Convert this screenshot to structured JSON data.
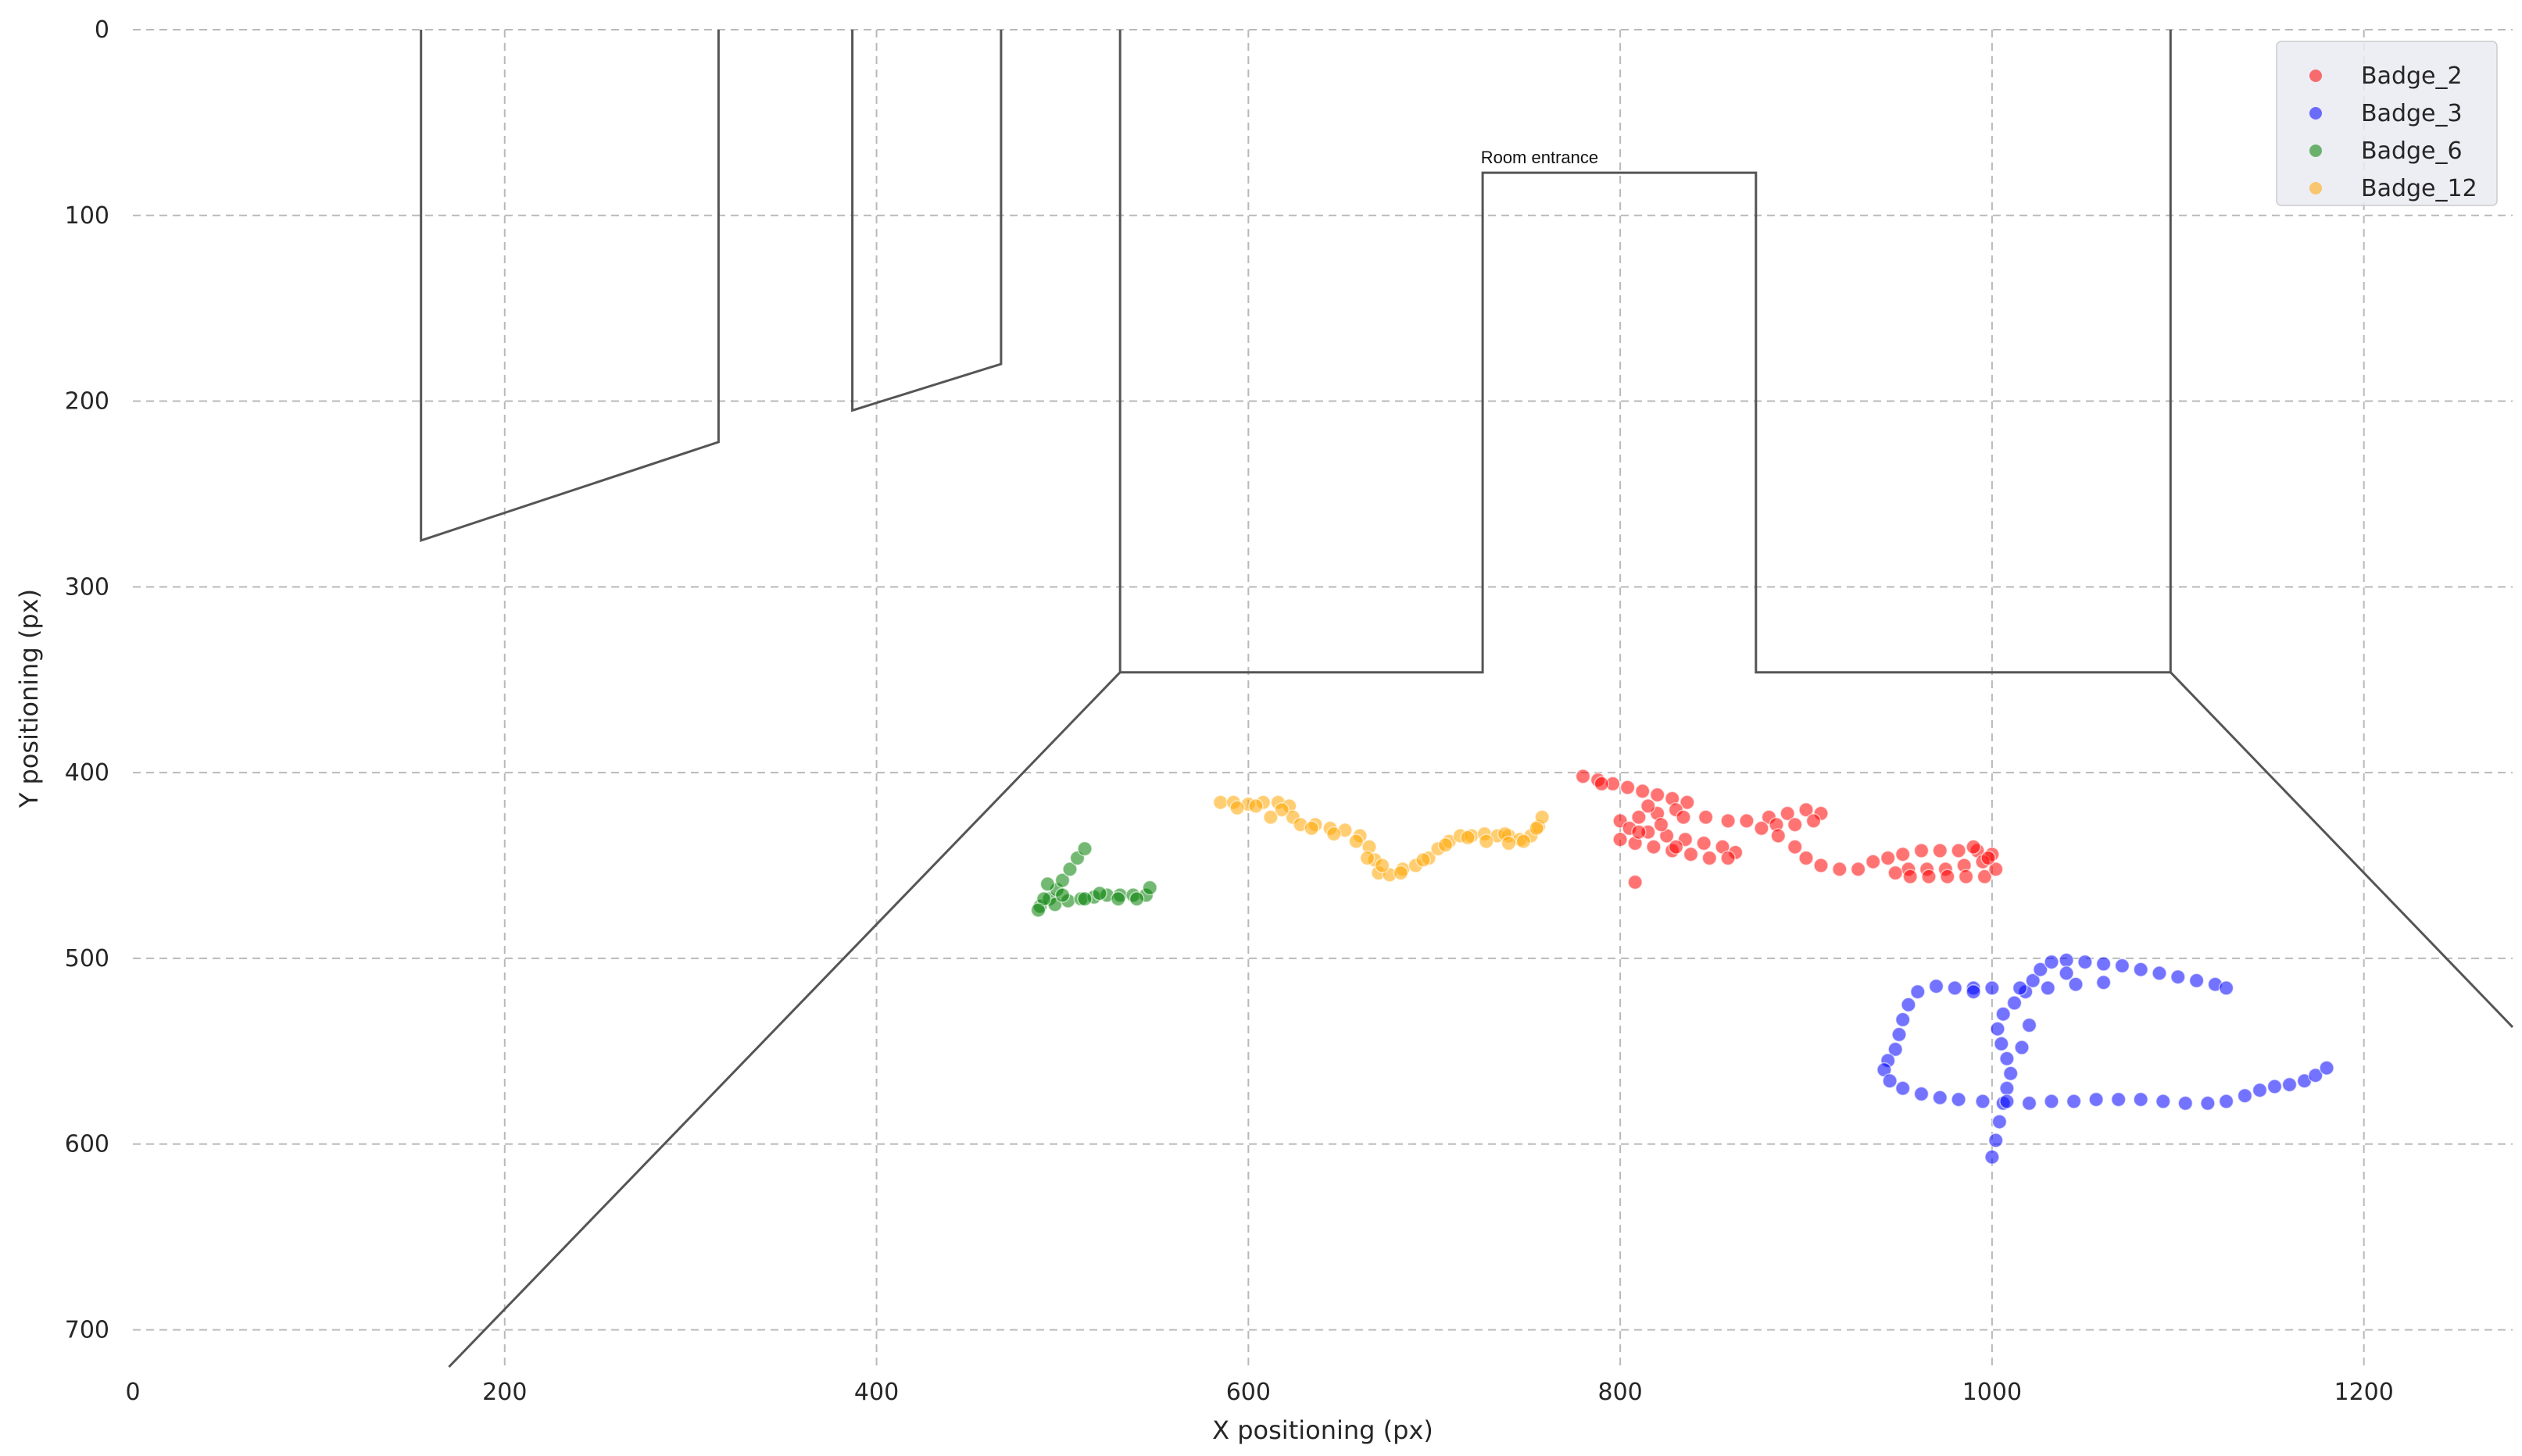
{
  "chart_data": {
    "type": "scatter",
    "title": "",
    "xlabel": "X positioning (px)",
    "ylabel": "Y positioning (px)",
    "xlim": [
      0,
      1280
    ],
    "ylim": [
      720,
      0
    ],
    "y_inverted": true,
    "grid": true,
    "legend_position": "top-right",
    "x_ticks": [
      0,
      200,
      400,
      600,
      800,
      1000,
      1200
    ],
    "y_ticks": [
      0,
      100,
      200,
      300,
      400,
      500,
      600,
      700
    ],
    "annotation": {
      "text": "Room entrance",
      "x": 725,
      "y": 72
    },
    "room_outline": [
      {
        "name": "left-door",
        "points": [
          [
            155,
            0
          ],
          [
            155,
            275
          ],
          [
            315,
            222
          ],
          [
            315,
            0
          ]
        ]
      },
      {
        "name": "small-door",
        "points": [
          [
            387,
            0
          ],
          [
            387,
            205
          ],
          [
            467,
            180
          ],
          [
            467,
            0
          ]
        ]
      },
      {
        "name": "back-wall",
        "points": [
          [
            531,
            0
          ],
          [
            531,
            346
          ],
          [
            726,
            346
          ],
          [
            726,
            77
          ],
          [
            873,
            77
          ],
          [
            873,
            346
          ],
          [
            1096,
            346
          ],
          [
            1096,
            0
          ]
        ]
      },
      {
        "name": "floor-left-edge",
        "points": [
          [
            531,
            346
          ],
          [
            170,
            720
          ]
        ]
      },
      {
        "name": "floor-right-edge",
        "points": [
          [
            1096,
            346
          ],
          [
            1280,
            537
          ]
        ]
      }
    ],
    "series": [
      {
        "name": "Badge_2",
        "color": "#ff0000",
        "points": [
          [
            780,
            402
          ],
          [
            788,
            404
          ],
          [
            796,
            406
          ],
          [
            804,
            408
          ],
          [
            812,
            410
          ],
          [
            820,
            412
          ],
          [
            828,
            414
          ],
          [
            836,
            416
          ],
          [
            830,
            420
          ],
          [
            820,
            422
          ],
          [
            810,
            424
          ],
          [
            800,
            426
          ],
          [
            805,
            430
          ],
          [
            815,
            432
          ],
          [
            825,
            434
          ],
          [
            835,
            436
          ],
          [
            845,
            438
          ],
          [
            855,
            440
          ],
          [
            862,
            443
          ],
          [
            858,
            446
          ],
          [
            848,
            446
          ],
          [
            838,
            444
          ],
          [
            828,
            442
          ],
          [
            818,
            440
          ],
          [
            808,
            438
          ],
          [
            800,
            436
          ],
          [
            810,
            432
          ],
          [
            822,
            428
          ],
          [
            834,
            424
          ],
          [
            846,
            424
          ],
          [
            858,
            426
          ],
          [
            868,
            426
          ],
          [
            880,
            424
          ],
          [
            890,
            422
          ],
          [
            900,
            420
          ],
          [
            908,
            422
          ],
          [
            904,
            426
          ],
          [
            894,
            428
          ],
          [
            884,
            428
          ],
          [
            876,
            430
          ],
          [
            885,
            434
          ],
          [
            894,
            440
          ],
          [
            900,
            446
          ],
          [
            908,
            450
          ],
          [
            918,
            452
          ],
          [
            928,
            452
          ],
          [
            936,
            448
          ],
          [
            944,
            446
          ],
          [
            952,
            444
          ],
          [
            962,
            442
          ],
          [
            972,
            442
          ],
          [
            982,
            442
          ],
          [
            992,
            442
          ],
          [
            1000,
            444
          ],
          [
            995,
            448
          ],
          [
            985,
            450
          ],
          [
            975,
            452
          ],
          [
            965,
            452
          ],
          [
            955,
            452
          ],
          [
            948,
            454
          ],
          [
            956,
            456
          ],
          [
            966,
            456
          ],
          [
            976,
            456
          ],
          [
            986,
            456
          ],
          [
            996,
            456
          ],
          [
            1002,
            452
          ],
          [
            998,
            446
          ],
          [
            990,
            440
          ],
          [
            808,
            459
          ],
          [
            790,
            406
          ],
          [
            815,
            418
          ],
          [
            830,
            440
          ]
        ]
      },
      {
        "name": "Badge_3",
        "color": "#0000ff",
        "points": [
          [
            1000,
            607
          ],
          [
            1002,
            598
          ],
          [
            1004,
            588
          ],
          [
            1006,
            578
          ],
          [
            1008,
            570
          ],
          [
            1010,
            562
          ],
          [
            1008,
            554
          ],
          [
            1005,
            546
          ],
          [
            1003,
            538
          ],
          [
            1006,
            530
          ],
          [
            1012,
            524
          ],
          [
            1018,
            518
          ],
          [
            1022,
            512
          ],
          [
            1026,
            506
          ],
          [
            1032,
            502
          ],
          [
            1040,
            501
          ],
          [
            1050,
            502
          ],
          [
            1060,
            503
          ],
          [
            1070,
            504
          ],
          [
            1080,
            506
          ],
          [
            1090,
            508
          ],
          [
            1100,
            510
          ],
          [
            1110,
            512
          ],
          [
            1120,
            514
          ],
          [
            1126,
            516
          ],
          [
            1060,
            513
          ],
          [
            1045,
            514
          ],
          [
            1030,
            516
          ],
          [
            1015,
            516
          ],
          [
            1000,
            516
          ],
          [
            990,
            516
          ],
          [
            980,
            516
          ],
          [
            970,
            515
          ],
          [
            960,
            518
          ],
          [
            955,
            525
          ],
          [
            952,
            533
          ],
          [
            950,
            541
          ],
          [
            948,
            549
          ],
          [
            944,
            555
          ],
          [
            942,
            560
          ],
          [
            945,
            566
          ],
          [
            952,
            570
          ],
          [
            962,
            573
          ],
          [
            972,
            575
          ],
          [
            982,
            576
          ],
          [
            995,
            577
          ],
          [
            1008,
            577
          ],
          [
            1020,
            578
          ],
          [
            1032,
            577
          ],
          [
            1044,
            577
          ],
          [
            1056,
            576
          ],
          [
            1068,
            576
          ],
          [
            1080,
            576
          ],
          [
            1092,
            577
          ],
          [
            1104,
            578
          ],
          [
            1116,
            578
          ],
          [
            1126,
            577
          ],
          [
            1136,
            574
          ],
          [
            1144,
            571
          ],
          [
            1152,
            569
          ],
          [
            1160,
            568
          ],
          [
            1168,
            566
          ],
          [
            1174,
            563
          ],
          [
            1180,
            559
          ],
          [
            1020,
            536
          ],
          [
            1016,
            548
          ],
          [
            1040,
            508
          ],
          [
            990,
            518
          ]
        ]
      },
      {
        "name": "Badge_6",
        "color": "#008000",
        "points": [
          [
            488,
            472
          ],
          [
            493,
            468
          ],
          [
            497,
            463
          ],
          [
            500,
            458
          ],
          [
            504,
            452
          ],
          [
            508,
            446
          ],
          [
            512,
            441
          ],
          [
            496,
            471
          ],
          [
            503,
            469
          ],
          [
            510,
            468
          ],
          [
            517,
            467
          ],
          [
            524,
            466
          ],
          [
            531,
            466
          ],
          [
            538,
            466
          ],
          [
            545,
            466
          ],
          [
            547,
            462
          ],
          [
            540,
            468
          ],
          [
            530,
            468
          ],
          [
            520,
            465
          ],
          [
            512,
            468
          ],
          [
            500,
            466
          ],
          [
            490,
            468
          ],
          [
            487,
            474
          ],
          [
            492,
            460
          ]
        ]
      },
      {
        "name": "Badge_12",
        "color": "#ffa500",
        "points": [
          [
            585,
            416
          ],
          [
            592,
            416
          ],
          [
            600,
            417
          ],
          [
            608,
            416
          ],
          [
            616,
            416
          ],
          [
            622,
            418
          ],
          [
            624,
            424
          ],
          [
            628,
            428
          ],
          [
            636,
            428
          ],
          [
            644,
            430
          ],
          [
            652,
            431
          ],
          [
            660,
            434
          ],
          [
            665,
            440
          ],
          [
            668,
            447
          ],
          [
            670,
            454
          ],
          [
            676,
            455
          ],
          [
            683,
            452
          ],
          [
            690,
            450
          ],
          [
            697,
            446
          ],
          [
            702,
            441
          ],
          [
            708,
            437
          ],
          [
            714,
            434
          ],
          [
            720,
            434
          ],
          [
            727,
            433
          ],
          [
            734,
            434
          ],
          [
            740,
            434
          ],
          [
            746,
            436
          ],
          [
            752,
            434
          ],
          [
            756,
            429
          ],
          [
            758,
            424
          ],
          [
            755,
            430
          ],
          [
            748,
            437
          ],
          [
            738,
            433
          ],
          [
            728,
            437
          ],
          [
            718,
            435
          ],
          [
            706,
            439
          ],
          [
            694,
            447
          ],
          [
            682,
            454
          ],
          [
            672,
            450
          ],
          [
            664,
            446
          ],
          [
            658,
            437
          ],
          [
            646,
            433
          ],
          [
            634,
            430
          ],
          [
            618,
            420
          ],
          [
            604,
            418
          ],
          [
            594,
            419
          ],
          [
            740,
            438
          ],
          [
            612,
            424
          ]
        ]
      }
    ]
  }
}
